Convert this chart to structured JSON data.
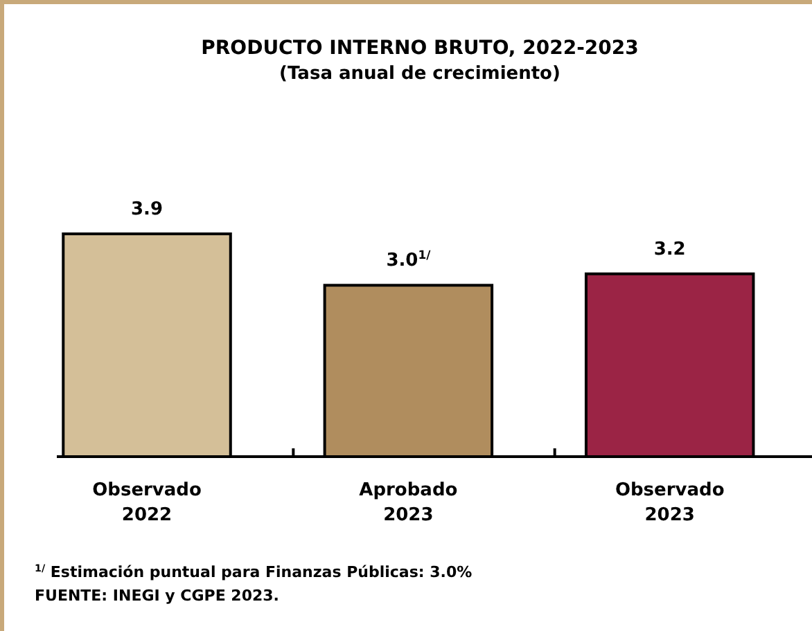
{
  "chart_data": {
    "type": "bar",
    "title": "PRODUCTO INTERNO BRUTO, 2022-2023",
    "subtitle": "(Tasa anual de crecimiento)",
    "categories": [
      "Observado\n2022",
      "Aprobado\n2023",
      "Observado\n2023"
    ],
    "values": [
      3.9,
      3.0,
      3.2
    ],
    "colors": [
      "#d4bf98",
      "#b08d5e",
      "#9b2445"
    ],
    "value_labels": [
      "3.9",
      "3.0$^{1/}$",
      "3.2"
    ],
    "annotations": [
      "$^{1/}$ Estimación puntual para Finanzas Públicas: 3.0%",
      "FUENTE: INEGI y CGPE 2023."
    ]
  }
}
